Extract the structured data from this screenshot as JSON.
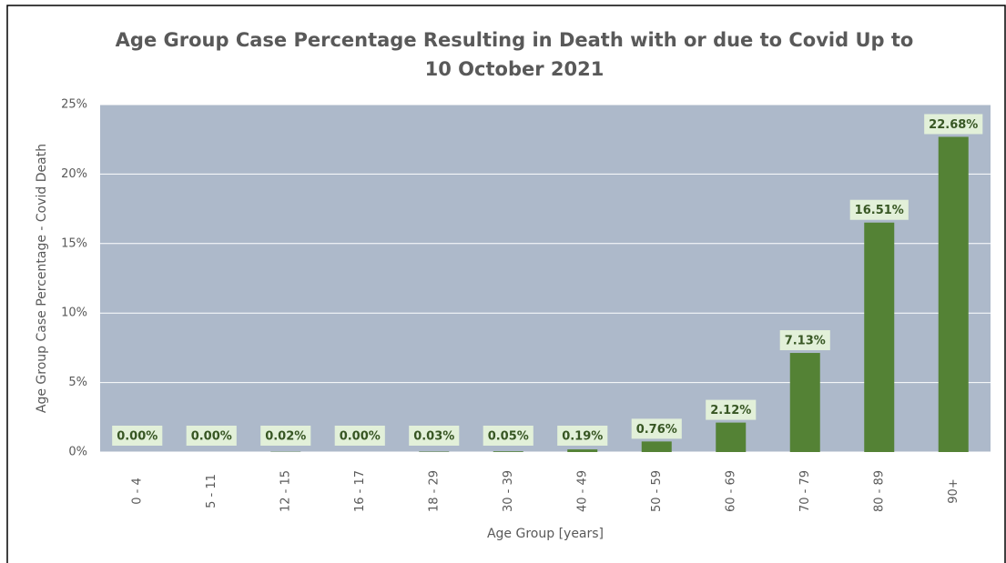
{
  "chart_data": {
    "type": "bar",
    "title": "Age Group Case Percentage Resulting in Death with or due to Covid Up to",
    "subtitle": "10 October 2021",
    "x_label": "Age Group [years]",
    "y_label": "Age Group Case Percentage - Covid Death",
    "categories": [
      "0 - 4",
      "5 - 11",
      "12 - 15",
      "16 - 17",
      "18 - 29",
      "30 - 39",
      "40 - 49",
      "50 - 59",
      "60 - 69",
      "70 - 79",
      "80 - 89",
      "90+"
    ],
    "values": [
      0,
      0,
      0.02,
      0,
      0.03,
      0.05,
      0.19,
      0.76,
      2.12,
      7.13,
      16.51,
      22.68
    ],
    "value_labels": [
      "0.00%",
      "0.00%",
      "0.02%",
      "0.00%",
      "0.03%",
      "0.05%",
      "0.19%",
      "0.76%",
      "2.12%",
      "7.13%",
      "16.51%",
      "22.68%"
    ],
    "color": "#548235",
    "ylim": [
      0,
      25
    ],
    "yticks": [
      {
        "value": 0,
        "label": "0%"
      },
      {
        "value": 5,
        "label": "5%"
      },
      {
        "value": 10,
        "label": "10%"
      },
      {
        "value": 15,
        "label": "15%"
      },
      {
        "value": 20,
        "label": "20%"
      },
      {
        "value": 25,
        "label": "25%"
      }
    ],
    "grid": true
  }
}
